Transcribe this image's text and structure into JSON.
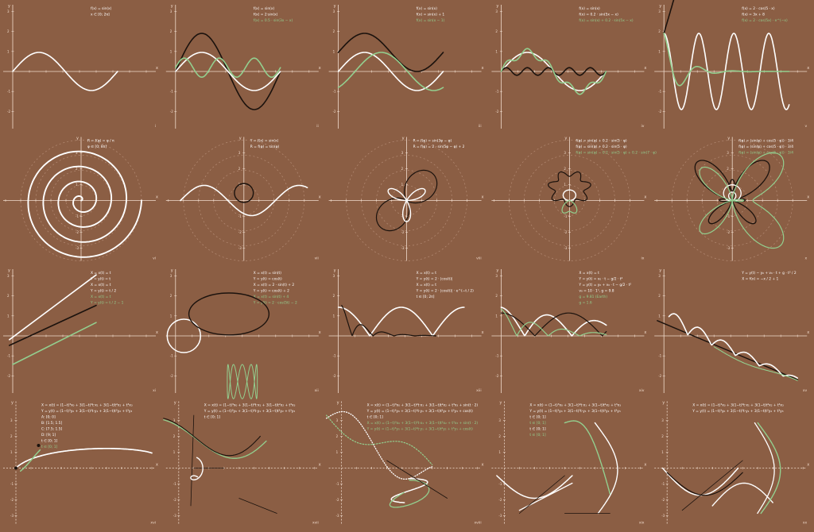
{
  "colors": {
    "background": "#8b5e44",
    "axis": "#f1dccd",
    "white": "#ffffff",
    "black": "#1b120d",
    "green": "#93cf8f",
    "faint": "#b58c75"
  },
  "panels": [
    {
      "id": "I",
      "label": "i",
      "kind": "cart",
      "axis": "solid",
      "formulas": [
        {
          "t": "f(x) = sin(x)",
          "c": "white"
        },
        {
          "t": "x ∈ [0; 2π]",
          "c": "white"
        }
      ],
      "curves": [
        "sine"
      ]
    },
    {
      "id": "II",
      "label": "ii",
      "kind": "cart",
      "axis": "solid",
      "formulas": [
        {
          "t": "f(x) = sin(x)",
          "c": "white"
        },
        {
          "t": "f(x) = 2·sin(x)",
          "c": "white"
        },
        {
          "t": "f(x) = 0.5 · sin(3x − x)",
          "c": "green"
        }
      ],
      "curves": [
        "sine2"
      ]
    },
    {
      "id": "III",
      "label": "iii",
      "kind": "cart",
      "axis": "solid",
      "formulas": [
        {
          "t": "f(x) = sin(x)",
          "c": "white"
        },
        {
          "t": "f(x) = sin(x) + 1",
          "c": "white"
        },
        {
          "t": "f(x) = sin(x − 1)",
          "c": "green"
        }
      ],
      "curves": [
        "sine3"
      ]
    },
    {
      "id": "IV",
      "label": "iv",
      "kind": "cart",
      "axis": "solid",
      "formulas": [
        {
          "t": "f(x) = sin(x)",
          "c": "white"
        },
        {
          "t": "f(x) = 0.2 · sin(5x − x)",
          "c": "white"
        },
        {
          "t": "f(x) = sin(x) + 0.2 · sin(5x − x)",
          "c": "green"
        }
      ],
      "curves": [
        "sine4"
      ]
    },
    {
      "id": "V",
      "label": "v",
      "kind": "cart",
      "axis": "solid",
      "formulas": [
        {
          "t": "f(x) = 2 · cos(5 · x)",
          "c": "white"
        },
        {
          "t": "f(x) = 3x + 8",
          "c": "white"
        },
        {
          "t": "f(x) = 2 · cos(5x) · e^(−x)",
          "c": "green"
        }
      ],
      "curves": [
        "sine5"
      ]
    },
    {
      "id": "VI",
      "label": "vi",
      "kind": "polar",
      "axis": "solid",
      "formulas": [
        {
          "t": "R = f(φ) = φ / π",
          "c": "white"
        },
        {
          "t": "φ ∈ [0; 8π]",
          "c": "white"
        }
      ],
      "curves": [
        "spiral"
      ]
    },
    {
      "id": "VII",
      "label": "vii",
      "kind": "polar",
      "axis": "solid",
      "formulas": [
        {
          "t": "Y = f(x) = sin(x)",
          "c": "white"
        },
        {
          "t": "R = f(φ) = sin(φ)",
          "c": "white"
        }
      ],
      "curves": [
        "polar7"
      ]
    },
    {
      "id": "VIII",
      "label": "viii",
      "kind": "polar",
      "axis": "solid",
      "formulas": [
        {
          "t": "R = f(φ) = sin(3φ − φ)",
          "c": "white"
        },
        {
          "t": "R = f(φ) = 2 · sin(5φ − φ) + 2",
          "c": "white"
        }
      ],
      "curves": [
        "rose"
      ]
    },
    {
      "id": "IX",
      "label": "ix",
      "kind": "polar",
      "axis": "solid",
      "formulas": [
        {
          "t": "f(φ) = sin(φ) + 0.2 · sin(5 · φ)",
          "c": "white"
        },
        {
          "t": "f(φ) = sin(φ) + 0.2 · sin(5 · φ)",
          "c": "white"
        },
        {
          "t": "f(φ) = sin(φ) − 0.2 · sin(5 · φ) + 0.2 · sin(7 · φ)",
          "c": "green"
        }
      ],
      "curves": [
        "flower"
      ]
    },
    {
      "id": "X",
      "label": "x",
      "kind": "polar",
      "axis": "solid",
      "formulas": [
        {
          "t": "f(φ) = (sin(φ) + cos(5 · φ)) · 3/4",
          "c": "white"
        },
        {
          "t": "f(φ) = (sin(φ) + cos(5 · φ)) · 3/4",
          "c": "white"
        },
        {
          "t": "f(φ) = (sin(φ) + cos(5 · φ)) · 3/4",
          "c": "green"
        }
      ],
      "curves": [
        "butterfly"
      ]
    },
    {
      "id": "XI",
      "label": "xi",
      "kind": "cart",
      "axis": "solid",
      "formulas": [
        {
          "t": "X = x(t) = t",
          "c": "white"
        },
        {
          "t": "Y = y(t) = t",
          "c": "white"
        },
        {
          "t": "X = x(t) = t",
          "c": "white"
        },
        {
          "t": "Y = y(t) = t / 2",
          "c": "white"
        },
        {
          "t": "X = x(t) = t",
          "c": "green"
        },
        {
          "t": "Y = y(t) = t / 2 − 1",
          "c": "green"
        }
      ],
      "curves": [
        "lines"
      ]
    },
    {
      "id": "XII",
      "label": "xii",
      "kind": "cart",
      "axis": "solid",
      "formulas": [
        {
          "t": "X = x(t) = sin(t)",
          "c": "white"
        },
        {
          "t": "Y = y(t) = cos(t)",
          "c": "white"
        },
        {
          "t": "X = x(t) = 2 · sin(t) + 2",
          "c": "white"
        },
        {
          "t": "Y = y(t) = cos(t) + 2",
          "c": "white"
        },
        {
          "t": "X = x(t) = sin(t) + 4",
          "c": "green"
        },
        {
          "t": "Y = y(t) = 2 · cos(5t) − 2",
          "c": "green"
        }
      ],
      "curves": [
        "circles"
      ]
    },
    {
      "id": "XIII",
      "label": "xiii",
      "kind": "cart",
      "axis": "solid",
      "formulas": [
        {
          "t": "X = x(t) = t",
          "c": "white"
        },
        {
          "t": "Y = y(t) = 2 · |cos(t)|",
          "c": "white"
        },
        {
          "t": "X = x(t) = t",
          "c": "white"
        },
        {
          "t": "Y = y(t) = 2 · |cos(t)| · e^(−t / 2)",
          "c": "white"
        },
        {
          "t": "t ∈ [0; 2π]",
          "c": "white"
        }
      ],
      "curves": [
        "bounce"
      ]
    },
    {
      "id": "XIV",
      "label": "xiv",
      "kind": "cart",
      "axis": "solid",
      "formulas": [
        {
          "t": "X = x(t) = t",
          "c": "white"
        },
        {
          "t": "Y = y(t) = v₀ · t − g/2 · t²",
          "c": "white"
        },
        {
          "t": "Y = y(t) = y₀ + v₀ · t − g/2 · t²",
          "c": "white"
        },
        {
          "t": "v₀ = 10 · 1ⁿ, g = 9.8",
          "c": "white"
        },
        {
          "t": "g = 9.81 (Earth)",
          "c": "green"
        },
        {
          "t": "g = 1.6",
          "c": "green"
        }
      ],
      "curves": [
        "bounce2"
      ]
    },
    {
      "id": "XV",
      "label": "xv",
      "kind": "cart",
      "axis": "solid",
      "formulas": [
        {
          "t": "Y = y(t) − y₀ + v₀ · t + g · t² / 2",
          "c": "white"
        },
        {
          "t": "X = f(x) = −x / 2 + 1",
          "c": "white"
        }
      ],
      "curves": [
        "slope"
      ]
    },
    {
      "id": "XVI",
      "label": "xvi",
      "kind": "cart",
      "axis": "dashed",
      "formulas": [
        {
          "t": "X = x(t) = (1−t)³x₀ + 3(1−t)²t·x₁ + 3(1−t)t²x₂ + t³x₃",
          "c": "white"
        },
        {
          "t": "Y = y(t) = (1−t)³y₀ + 3(1−t)²t·y₁ + 3(1−t)t²y₂ + t³y₃",
          "c": "white"
        },
        {
          "t": "A: [0; 0]",
          "c": "white"
        },
        {
          "t": "B: [1.5; 1.5]",
          "c": "white"
        },
        {
          "t": "C: [7.5; 1.5]",
          "c": "white"
        },
        {
          "t": "D: [9; 1]",
          "c": "white"
        },
        {
          "t": "t ∈ [0; 1]",
          "c": "white"
        },
        {
          "t": "t ∈ [0; 1]",
          "c": "green"
        }
      ],
      "curves": [
        "bez1"
      ]
    },
    {
      "id": "XVII",
      "label": "xvii",
      "kind": "cart",
      "axis": "dashed",
      "formulas": [
        {
          "t": "X = x(t) = (1−t)³x₀ + 3(1−t)²t·x₁ + 3(1−t)t²x₂ + t³x₃",
          "c": "white"
        },
        {
          "t": "Y = y(t) = (1−t)³y₀ + 3(1−t)²t·y₁ + 3(1−t)t²y₂ + t³y₃",
          "c": "white"
        },
        {
          "t": "t ∈ [0; 1]",
          "c": "white"
        }
      ],
      "curves": [
        "bez2"
      ]
    },
    {
      "id": "XVIII",
      "label": "xviii",
      "kind": "cart",
      "axis": "dashed",
      "formulas": [
        {
          "t": "X = x(t) = (1−t)³x₀ + 3(1−t)²t·x₁ + 3(1−t)t²x₂ + t³x₃ + sin(t · 2)",
          "c": "white"
        },
        {
          "t": "Y = y(t) = (1−t)³y₀ + 3(1−t)²t·y₁ + 3(1−t)t²y₂ + t³y₃ + cos(t)",
          "c": "white"
        },
        {
          "t": "t ∈ [0; 1]",
          "c": "white"
        },
        {
          "t": "X = x(t) = (1−t)³x₀ + 3(1−t)²t·x₁ + 3(1−t)t²x₂ + t³x₃ + sin(t · 2)",
          "c": "green"
        },
        {
          "t": "Y = y(t) = (1−t)³y₀ + 3(1−t)²t·y₁ + 3(1−t)t²y₂ + t³y₃ + cos(t)",
          "c": "green"
        }
      ],
      "curves": [
        "bez3"
      ]
    },
    {
      "id": "XIX",
      "label": "xix",
      "kind": "cart",
      "axis": "dashed",
      "formulas": [
        {
          "t": "X = x(t) = (1−t)³x₀ + 3(1−t)²t·x₁ + 3(1−t)t²x₂ + t³x₃",
          "c": "white"
        },
        {
          "t": "Y = y(t) = (1−t)³y₀ + 3(1−t)²t·y₁ + 3(1−t)t²y₂ + t³y₃",
          "c": "white"
        },
        {
          "t": "t ∈ [0; 1]",
          "c": "white"
        },
        {
          "t": "t ∈ [0; 1]",
          "c": "green"
        },
        {
          "t": "t ∈ [0; 1]",
          "c": "white"
        },
        {
          "t": "t ∈ [0; 1]",
          "c": "green"
        }
      ],
      "curves": [
        "bez4"
      ]
    },
    {
      "id": "XX",
      "label": "xx",
      "kind": "cart",
      "axis": "dashed",
      "formulas": [
        {
          "t": "X = x(t) = (1−t)³x₀ + 3(1−t)²t·x₁ + 3(1−t)t²x₂ + t³x₃",
          "c": "white"
        },
        {
          "t": "Y = y(t) = (1−t)³y₀ + 3(1−t)²t·y₁ + 3(1−t)t²y₂ + t³y₃",
          "c": "white"
        }
      ],
      "curves": [
        "bez5"
      ]
    }
  ]
}
